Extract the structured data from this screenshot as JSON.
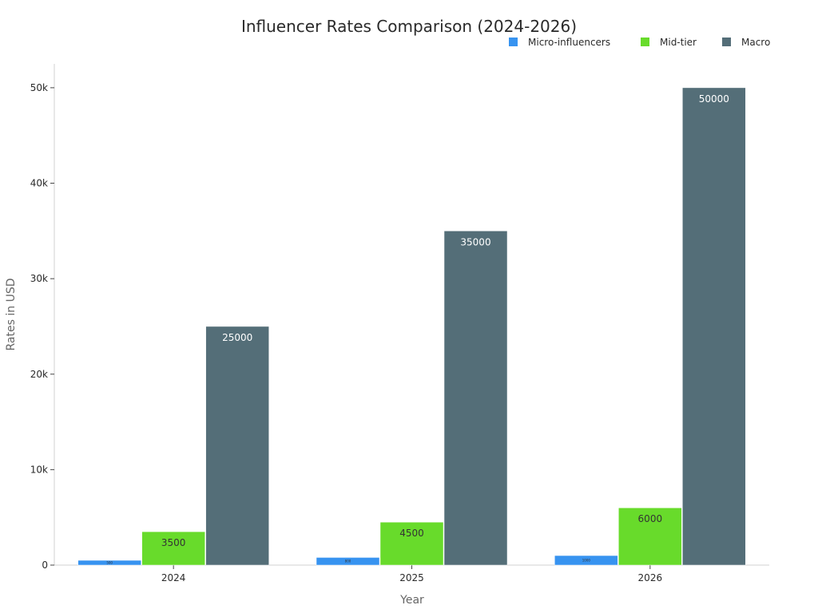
{
  "chart_data": {
    "type": "bar",
    "title": "Influencer Rates Comparison (2024-2026)",
    "xlabel": "Year",
    "ylabel": "Rates in USD",
    "categories": [
      "2024",
      "2025",
      "2026"
    ],
    "ylim": [
      0,
      52500
    ],
    "yticks": [
      0,
      10000,
      20000,
      30000,
      40000,
      50000
    ],
    "ytick_labels": [
      "0",
      "10k",
      "20k",
      "30k",
      "40k",
      "50k"
    ],
    "legend_position": "top-right",
    "grid": false,
    "series": [
      {
        "name": "Micro-influencers",
        "color": "#3793f0",
        "label_color": "#333333",
        "values": [
          500,
          800,
          1000
        ]
      },
      {
        "name": "Mid-tier",
        "color": "#68db2b",
        "label_color": "#333333",
        "values": [
          3500,
          4500,
          6000
        ]
      },
      {
        "name": "Macro",
        "color": "#546e78",
        "label_color": "#ffffff",
        "values": [
          25000,
          35000,
          50000
        ]
      }
    ]
  }
}
